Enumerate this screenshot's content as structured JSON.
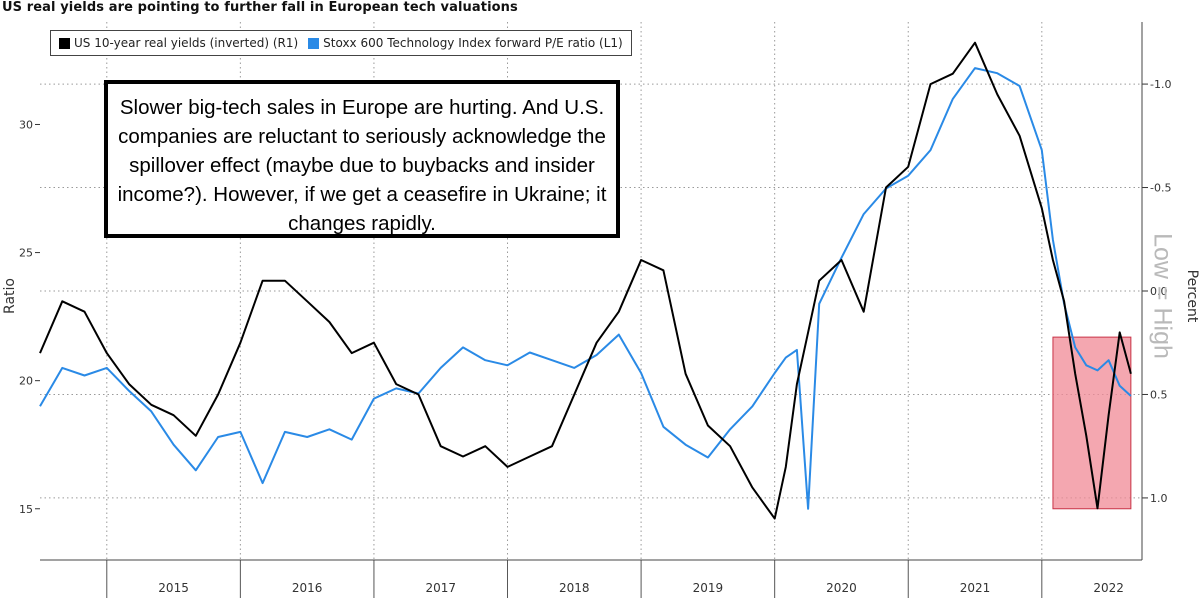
{
  "title": "US real yields are pointing to further fall in European tech valuations",
  "legend": [
    {
      "label": "US 10-year real yields (inverted) (R1)",
      "color": "#000000"
    },
    {
      "label": "Stoxx 600 Technology Index forward P/E ratio (L1)",
      "color": "#2a8ae6"
    }
  ],
  "annotation": "Slower big-tech sales in Europe are hurting. And U.S. companies are reluctant to seriously acknowledge the spillover effect (maybe due to buybacks and insider income?). However, if we get a ceasefire in Ukraine; it changes rapidly.",
  "watermark": "Low = High",
  "highlight_color": "#f08a96",
  "chart_data": {
    "type": "line",
    "title": "US real yields are pointing to further fall in European tech valuations",
    "ylabel": "Ratio",
    "y2label": "Percent",
    "x_ticks": [
      "2015",
      "2016",
      "2017",
      "2018",
      "2019",
      "2020",
      "2021",
      "2022"
    ],
    "xlim": [
      "2014-07",
      "2022-10"
    ],
    "ylim": [
      13,
      34
    ],
    "y_ticks": [
      15,
      20,
      25,
      30
    ],
    "y2lim": [
      -1.3,
      1.3
    ],
    "y2_inverted": true,
    "y2_ticks": [
      "-1.0",
      "-0.5",
      "0.0",
      "0.5",
      "1.0"
    ],
    "y2_tick_values": [
      -1.0,
      -0.5,
      0.0,
      0.5,
      1.0
    ],
    "grid": true,
    "legend_position": "top-left",
    "highlight_region": {
      "x": [
        "2022-02",
        "2022-09"
      ],
      "y": [
        15,
        21.7
      ]
    },
    "series": [
      {
        "name": "US 10-year real yields (inverted) (R1)",
        "axis": "right",
        "color": "#000000",
        "x": [
          "2014-07",
          "2014-09",
          "2014-11",
          "2015-01",
          "2015-03",
          "2015-05",
          "2015-07",
          "2015-09",
          "2015-11",
          "2016-01",
          "2016-03",
          "2016-05",
          "2016-07",
          "2016-09",
          "2016-11",
          "2017-01",
          "2017-03",
          "2017-05",
          "2017-07",
          "2017-09",
          "2017-11",
          "2018-01",
          "2018-03",
          "2018-05",
          "2018-07",
          "2018-09",
          "2018-11",
          "2019-01",
          "2019-03",
          "2019-05",
          "2019-07",
          "2019-09",
          "2019-11",
          "2020-01",
          "2020-02",
          "2020-03",
          "2020-04",
          "2020-05",
          "2020-07",
          "2020-09",
          "2020-11",
          "2021-01",
          "2021-03",
          "2021-05",
          "2021-07",
          "2021-09",
          "2021-11",
          "2022-01",
          "2022-02",
          "2022-03",
          "2022-04",
          "2022-05",
          "2022-06",
          "2022-07",
          "2022-08",
          "2022-09"
        ],
        "values": [
          0.3,
          0.05,
          0.1,
          0.3,
          0.45,
          0.55,
          0.6,
          0.7,
          0.5,
          0.25,
          -0.05,
          -0.05,
          0.05,
          0.15,
          0.3,
          0.25,
          0.45,
          0.5,
          0.75,
          0.8,
          0.75,
          0.85,
          0.8,
          0.75,
          0.5,
          0.25,
          0.1,
          -0.15,
          -0.1,
          0.4,
          0.65,
          0.75,
          0.95,
          1.1,
          0.85,
          0.45,
          0.2,
          -0.05,
          -0.15,
          0.1,
          -0.5,
          -0.6,
          -1.0,
          -1.05,
          -1.2,
          -0.95,
          -0.75,
          -0.4,
          -0.15,
          0.05,
          0.4,
          0.7,
          1.05,
          0.6,
          0.2,
          0.4
        ]
      },
      {
        "name": "Stoxx 600 Technology Index forward P/E ratio (L1)",
        "axis": "left",
        "color": "#2a8ae6",
        "x": [
          "2014-07",
          "2014-09",
          "2014-11",
          "2015-01",
          "2015-03",
          "2015-05",
          "2015-07",
          "2015-09",
          "2015-11",
          "2016-01",
          "2016-03",
          "2016-05",
          "2016-07",
          "2016-09",
          "2016-11",
          "2017-01",
          "2017-03",
          "2017-05",
          "2017-07",
          "2017-09",
          "2017-11",
          "2018-01",
          "2018-03",
          "2018-05",
          "2018-07",
          "2018-09",
          "2018-11",
          "2019-01",
          "2019-03",
          "2019-05",
          "2019-07",
          "2019-09",
          "2019-11",
          "2020-01",
          "2020-02",
          "2020-03",
          "2020-04",
          "2020-05",
          "2020-07",
          "2020-09",
          "2020-11",
          "2021-01",
          "2021-03",
          "2021-05",
          "2021-07",
          "2021-09",
          "2021-11",
          "2022-01",
          "2022-02",
          "2022-03",
          "2022-04",
          "2022-05",
          "2022-06",
          "2022-07",
          "2022-08",
          "2022-09"
        ],
        "values": [
          19.0,
          20.5,
          20.2,
          20.5,
          19.6,
          18.8,
          17.5,
          16.5,
          17.8,
          18.0,
          16.0,
          18.0,
          17.8,
          18.1,
          17.7,
          19.3,
          19.7,
          19.5,
          20.5,
          21.3,
          20.8,
          20.6,
          21.1,
          20.8,
          20.5,
          21.0,
          21.8,
          20.3,
          18.2,
          17.5,
          17.0,
          18.1,
          19.0,
          20.3,
          20.9,
          21.2,
          15.0,
          23.0,
          24.8,
          26.5,
          27.5,
          28.0,
          29.0,
          31.0,
          32.2,
          32.0,
          31.5,
          29.0,
          25.5,
          23.0,
          21.3,
          20.6,
          20.4,
          20.8,
          19.8,
          19.4
        ]
      }
    ]
  }
}
